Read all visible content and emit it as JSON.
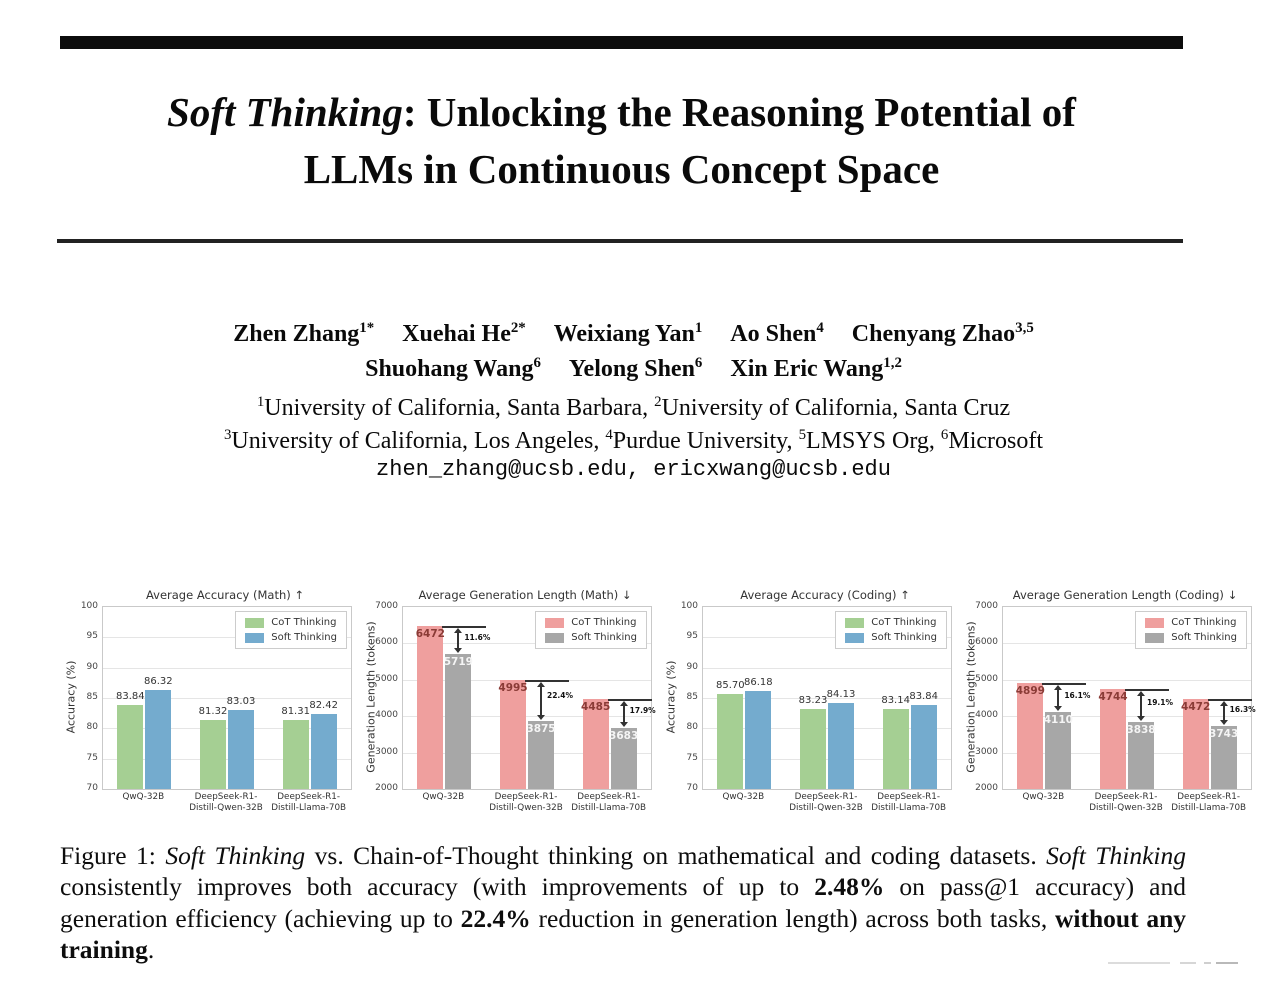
{
  "header": {
    "title_italic": "Soft Thinking",
    "title_rest": ": Unlocking the Reasoning Potential of",
    "title_line2": "LLMs in Continuous Concept Space"
  },
  "authors": {
    "line1": [
      {
        "name": "Zhen Zhang",
        "sup": "1*"
      },
      {
        "name": "Xuehai He",
        "sup": "2*"
      },
      {
        "name": "Weixiang Yan",
        "sup": "1"
      },
      {
        "name": "Ao Shen",
        "sup": "4"
      },
      {
        "name": "Chenyang Zhao",
        "sup": "3,5"
      }
    ],
    "line2": [
      {
        "name": "Shuohang Wang",
        "sup": "6"
      },
      {
        "name": "Yelong Shen",
        "sup": "6"
      },
      {
        "name": "Xin Eric Wang",
        "sup": "1,2"
      }
    ]
  },
  "affiliations": {
    "line1": [
      {
        "sup": "1",
        "text": "University of California, Santa Barbara, "
      },
      {
        "sup": "2",
        "text": "University of California, Santa Cruz"
      }
    ],
    "line2": [
      {
        "sup": "3",
        "text": "University of California, Los Angeles, "
      },
      {
        "sup": "4",
        "text": "Purdue University, "
      },
      {
        "sup": "5",
        "text": "LMSYS Org, "
      },
      {
        "sup": "6",
        "text": "Microsoft"
      }
    ]
  },
  "emails": "zhen_zhang@ucsb.edu, ericxwang@ucsb.edu",
  "colors": {
    "cot_accuracy": "#a5cf93",
    "soft_accuracy": "#74abce",
    "cot_length": "#ef9f9e",
    "soft_length": "#a7a7a7",
    "cot_length_label": "#8a3b36",
    "soft_length_label": "#f5f5f5"
  },
  "chart_data": [
    {
      "type": "bar",
      "title": "Average Accuracy (Math) ↑",
      "ylabel": "Accuracy (%)",
      "ylim": [
        70,
        100
      ],
      "yticks": [
        70,
        75,
        80,
        85,
        90,
        95,
        100
      ],
      "categories": [
        [
          "QwQ-32B"
        ],
        [
          "DeepSeek-R1-",
          "Distill-Qwen-32B"
        ],
        [
          "DeepSeek-R1-",
          "Distill-Llama-70B"
        ]
      ],
      "series": [
        {
          "name": "CoT Thinking",
          "color": "#a5cf93",
          "values": [
            83.84,
            81.32,
            81.31
          ]
        },
        {
          "name": "Soft Thinking",
          "color": "#74abce",
          "values": [
            86.32,
            83.03,
            82.42
          ]
        }
      ],
      "value_labels": "above",
      "label_format": "fixed2",
      "legend_position": "top-right",
      "grid": true
    },
    {
      "type": "bar",
      "title": "Average Generation Length (Math) ↓",
      "ylabel": "Generation Length (tokens)",
      "ylim": [
        2000,
        7000
      ],
      "yticks": [
        2000,
        3000,
        4000,
        5000,
        6000,
        7000
      ],
      "categories": [
        [
          "QwQ-32B"
        ],
        [
          "DeepSeek-R1-",
          "Distill-Qwen-32B"
        ],
        [
          "DeepSeek-R1-",
          "Distill-Llama-70B"
        ]
      ],
      "series": [
        {
          "name": "CoT Thinking",
          "color": "#ef9f9e",
          "values": [
            6472,
            4995,
            4485
          ]
        },
        {
          "name": "Soft Thinking",
          "color": "#a7a7a7",
          "values": [
            5719,
            3875,
            3683
          ]
        }
      ],
      "reductions": [
        "11.6%",
        "22.4%",
        "17.9%"
      ],
      "value_labels": "inside",
      "label_format": "int",
      "legend_position": "top-right",
      "grid": true
    },
    {
      "type": "bar",
      "title": "Average Accuracy (Coding) ↑",
      "ylabel": "Accuracy (%)",
      "ylim": [
        70,
        100
      ],
      "yticks": [
        70,
        75,
        80,
        85,
        90,
        95,
        100
      ],
      "categories": [
        [
          "QwQ-32B"
        ],
        [
          "DeepSeek-R1-",
          "Distill-Qwen-32B"
        ],
        [
          "DeepSeek-R1-",
          "Distill-Llama-70B"
        ]
      ],
      "series": [
        {
          "name": "CoT Thinking",
          "color": "#a5cf93",
          "values": [
            85.7,
            83.23,
            83.14
          ]
        },
        {
          "name": "Soft Thinking",
          "color": "#74abce",
          "values": [
            86.18,
            84.13,
            83.84
          ]
        }
      ],
      "value_labels": "above",
      "label_format": "fixed2",
      "legend_position": "top-right",
      "grid": true
    },
    {
      "type": "bar",
      "title": "Average Generation Length (Coding) ↓",
      "ylabel": "Generation Length (tokens)",
      "ylim": [
        2000,
        7000
      ],
      "yticks": [
        2000,
        3000,
        4000,
        5000,
        6000,
        7000
      ],
      "categories": [
        [
          "QwQ-32B"
        ],
        [
          "DeepSeek-R1-",
          "Distill-Qwen-32B"
        ],
        [
          "DeepSeek-R1-",
          "Distill-Llama-70B"
        ]
      ],
      "series": [
        {
          "name": "CoT Thinking",
          "color": "#ef9f9e",
          "values": [
            4899,
            4744,
            4472
          ]
        },
        {
          "name": "Soft Thinking",
          "color": "#a7a7a7",
          "values": [
            4110,
            3838,
            3743
          ]
        }
      ],
      "reductions": [
        "16.1%",
        "19.1%",
        "16.3%"
      ],
      "value_labels": "inside",
      "label_format": "int",
      "legend_position": "top-right",
      "grid": true
    }
  ],
  "caption": {
    "segments": [
      {
        "t": "Figure 1: ",
        "s": "r"
      },
      {
        "t": "Soft Thinking",
        "s": "i"
      },
      {
        "t": " vs. Chain-of-Thought thinking on mathematical and coding datasets. ",
        "s": "r"
      },
      {
        "t": "Soft Thinking",
        "s": "i"
      },
      {
        "t": " consistently improves both accuracy (with improvements of up to ",
        "s": "r"
      },
      {
        "t": "2.48%",
        "s": "b"
      },
      {
        "t": " on pass@1 accuracy) and generation efficiency (achieving up to ",
        "s": "r"
      },
      {
        "t": "22.4%",
        "s": "b"
      },
      {
        "t": " reduction in generation length) across both tasks, ",
        "s": "r"
      },
      {
        "t": "without any training",
        "s": "b"
      },
      {
        "t": ".",
        "s": "r"
      }
    ]
  }
}
